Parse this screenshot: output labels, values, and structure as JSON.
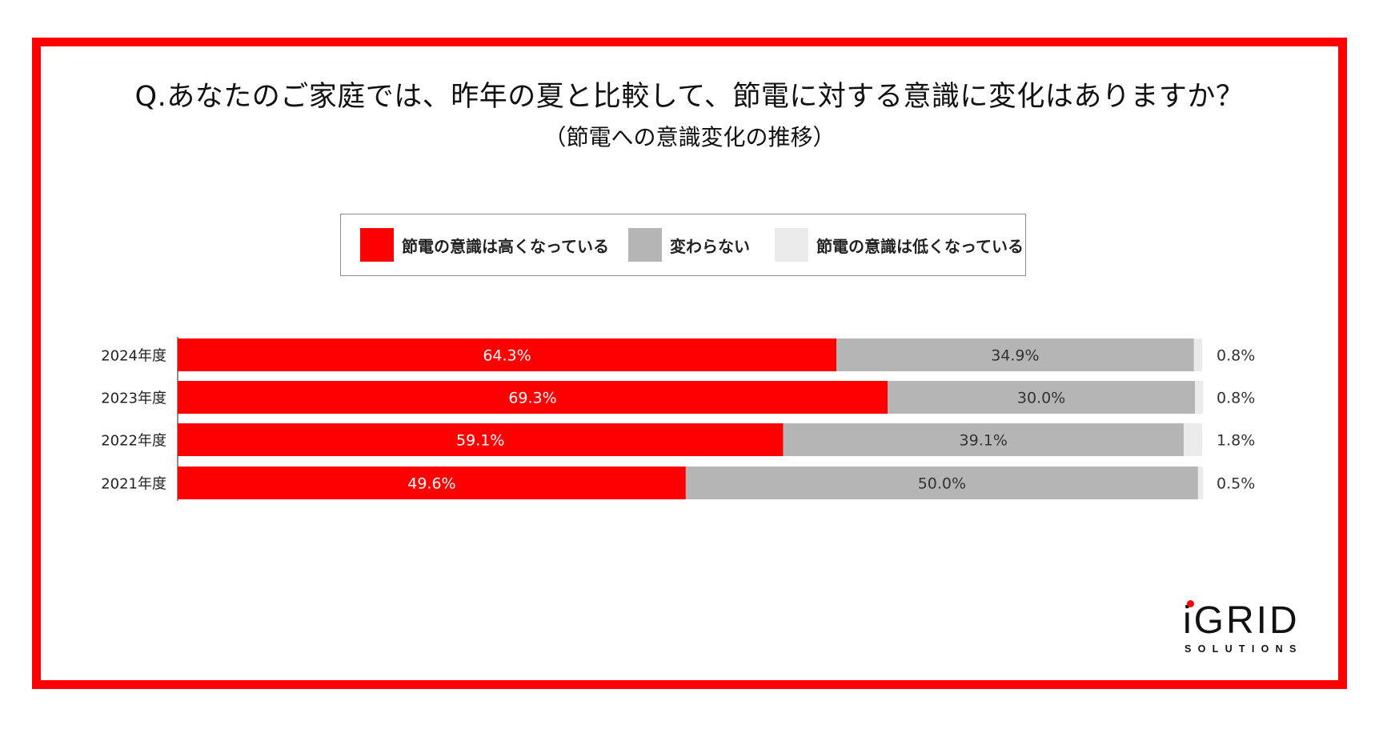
{
  "title": "Q.あなたのご家庭では、昨年の夏と比較して、節電に対する意識に変化はありますか？",
  "subtitle": "（節電への意識変化の推移）",
  "colors": {
    "frame": "#ff0000",
    "higher": "#ff0000",
    "same": "#b5b5b5",
    "lower": "#ebebeb"
  },
  "legend": [
    {
      "label": "節電の意識は高くなっている",
      "color": "#ff0000"
    },
    {
      "label": "変わらない",
      "color": "#b5b5b5"
    },
    {
      "label": "節電の意識は低くなっている",
      "color": "#ebebeb"
    }
  ],
  "chart_data": {
    "type": "bar",
    "orientation": "horizontal",
    "stacked": true,
    "categories": [
      "2024年度",
      "2023年度",
      "2022年度",
      "2021年度"
    ],
    "series": [
      {
        "name": "節電の意識は高くなっている",
        "values": [
          64.3,
          69.3,
          59.1,
          49.6
        ],
        "labels": [
          "64.3%",
          "69.3%",
          "59.1%",
          "49.6%"
        ]
      },
      {
        "name": "変わらない",
        "values": [
          34.9,
          30.0,
          39.1,
          50.0
        ],
        "labels": [
          "34.9%",
          "30.0%",
          "39.1%",
          "50.0%"
        ]
      },
      {
        "name": "節電の意識は低くなっている",
        "values": [
          0.8,
          0.8,
          1.8,
          0.5
        ],
        "labels": [
          "0.8%",
          "0.8%",
          "1.8%",
          "0.5%"
        ]
      }
    ],
    "xlim": [
      0,
      100
    ],
    "grid": false,
    "legend_position": "top"
  },
  "logo": {
    "wordmark": "iGRID",
    "sub": "SOLUTIONS"
  }
}
